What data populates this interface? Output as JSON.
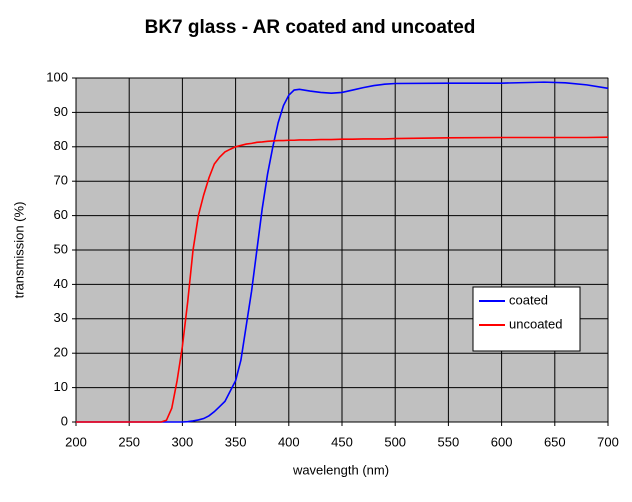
{
  "chart_data": {
    "type": "line",
    "title": "BK7 glass - AR coated and uncoated",
    "x_label": "wavelength (nm)",
    "y_label": "transmission (%)",
    "x": [
      200,
      250,
      280,
      285,
      290,
      295,
      300,
      305,
      310,
      315,
      320,
      325,
      330,
      335,
      340,
      345,
      350,
      355,
      360,
      365,
      370,
      375,
      380,
      385,
      390,
      395,
      400,
      405,
      410,
      420,
      430,
      440,
      450,
      460,
      470,
      480,
      490,
      500,
      550,
      600,
      640,
      660,
      680,
      700
    ],
    "series": [
      {
        "name": "coated",
        "color": "#0000ff",
        "values": [
          0,
          0,
          0,
          0,
          0,
          0,
          0,
          0.1,
          0.3,
          0.6,
          1,
          1.8,
          3,
          4.5,
          6,
          9,
          12,
          18,
          28,
          38,
          50,
          62,
          72,
          80,
          87,
          92,
          95,
          96.5,
          96.7,
          96.2,
          95.8,
          95.6,
          95.8,
          96.5,
          97.2,
          97.8,
          98.2,
          98.4,
          98.5,
          98.5,
          98.8,
          98.6,
          98,
          97
        ]
      },
      {
        "name": "uncoated",
        "color": "#ff0000",
        "values": [
          0,
          0,
          0,
          0.5,
          4,
          12,
          22,
          35,
          50,
          60,
          66,
          71,
          75,
          77,
          78.5,
          79.3,
          80,
          80.4,
          80.8,
          81,
          81.3,
          81.4,
          81.6,
          81.7,
          81.8,
          81.8,
          81.9,
          81.9,
          82,
          82,
          82.1,
          82.1,
          82.2,
          82.2,
          82.3,
          82.3,
          82.3,
          82.4,
          82.6,
          82.7,
          82.7,
          82.7,
          82.7,
          82.8
        ]
      }
    ],
    "xlim": [
      200,
      700
    ],
    "xticks": [
      200,
      250,
      300,
      350,
      400,
      450,
      500,
      550,
      600,
      650,
      700
    ],
    "ylim": [
      0,
      100
    ],
    "yticks": [
      0,
      10,
      20,
      30,
      40,
      50,
      60,
      70,
      80,
      90,
      100
    ],
    "grid": true,
    "plot_background": "#c0c0c0",
    "legend_position": "right"
  }
}
